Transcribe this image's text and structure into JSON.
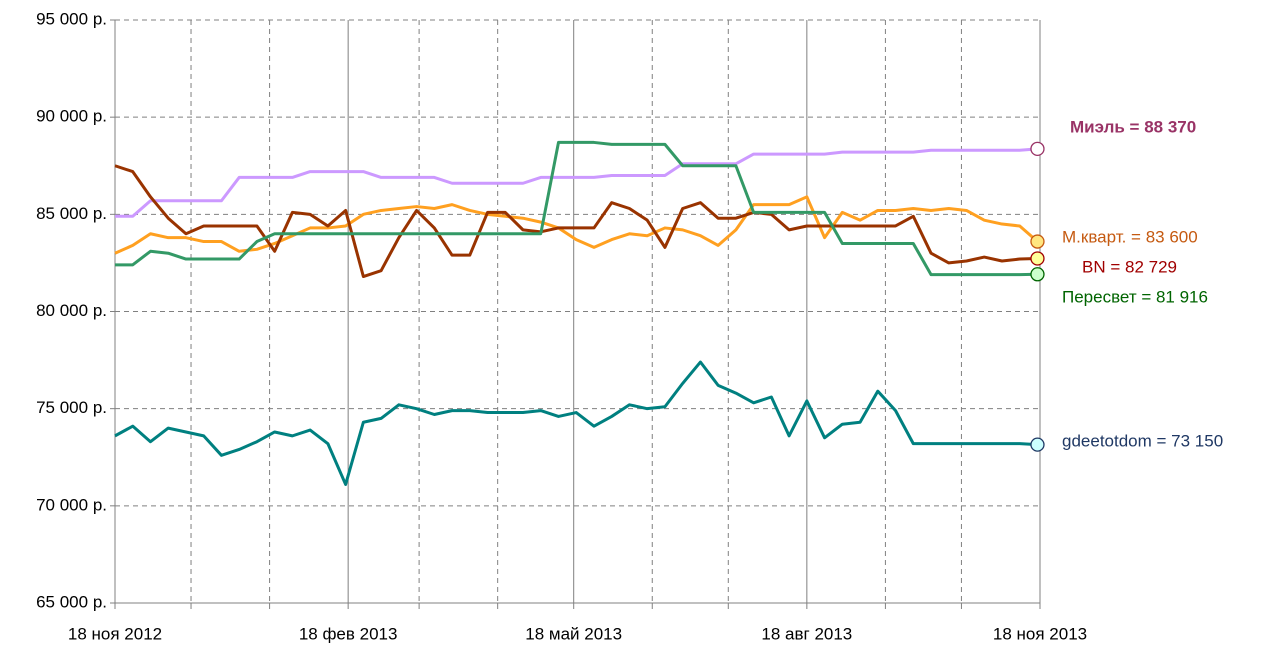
{
  "chart_data": {
    "type": "line",
    "x": [
      "2012-11-18",
      "2012-11-25",
      "2012-12-02",
      "2012-12-09",
      "2012-12-16",
      "2012-12-23",
      "2012-12-30",
      "2013-01-06",
      "2013-01-13",
      "2013-01-20",
      "2013-01-27",
      "2013-02-03",
      "2013-02-10",
      "2013-02-17",
      "2013-02-24",
      "2013-03-03",
      "2013-03-10",
      "2013-03-17",
      "2013-03-24",
      "2013-03-31",
      "2013-04-07",
      "2013-04-14",
      "2013-04-21",
      "2013-04-28",
      "2013-05-05",
      "2013-05-12",
      "2013-05-19",
      "2013-05-26",
      "2013-06-02",
      "2013-06-09",
      "2013-06-16",
      "2013-06-23",
      "2013-06-30",
      "2013-07-07",
      "2013-07-14",
      "2013-07-21",
      "2013-07-28",
      "2013-08-04",
      "2013-08-11",
      "2013-08-18",
      "2013-08-25",
      "2013-09-01",
      "2013-09-08",
      "2013-09-15",
      "2013-09-22",
      "2013-09-29",
      "2013-10-06",
      "2013-10-13",
      "2013-10-20",
      "2013-10-27",
      "2013-11-03",
      "2013-11-10",
      "2013-11-17"
    ],
    "xlim": [
      "2012-11-18",
      "2013-11-18"
    ],
    "xticks": [
      {
        "value": "2012-11-18",
        "label": "18 ноя 2012"
      },
      {
        "value": "2013-02-18",
        "label": "18 фев 2013"
      },
      {
        "value": "2013-05-18",
        "label": "18 май 2013"
      },
      {
        "value": "2013-08-18",
        "label": "18 авг 2013"
      },
      {
        "value": "2013-11-18",
        "label": "18 ноя 2013"
      }
    ],
    "xminor": [
      "2012-12-18",
      "2013-01-18",
      "2013-03-18",
      "2013-04-18",
      "2013-06-18",
      "2013-07-18",
      "2013-09-18",
      "2013-10-18"
    ],
    "ylim": [
      65000,
      95000
    ],
    "yticks": [
      {
        "value": 65000,
        "label": "65 000 р."
      },
      {
        "value": 70000,
        "label": "70 000 р."
      },
      {
        "value": 75000,
        "label": "75 000 р."
      },
      {
        "value": 80000,
        "label": "80 000 р."
      },
      {
        "value": 85000,
        "label": "85 000 р."
      },
      {
        "value": 90000,
        "label": "90 000 р."
      },
      {
        "value": 95000,
        "label": "95 000 р."
      }
    ],
    "grid": true,
    "series": [
      {
        "name": "Миэль = 88 370",
        "color": "#cc99ff",
        "label_color": "#993366",
        "marker_fill": "#ffffff",
        "bold": true,
        "values": [
          84900,
          84900,
          85700,
          85700,
          85700,
          85700,
          85700,
          86900,
          86900,
          86900,
          86900,
          87200,
          87200,
          87200,
          87200,
          86900,
          86900,
          86900,
          86900,
          86600,
          86600,
          86600,
          86600,
          86600,
          86900,
          86900,
          86900,
          86900,
          87000,
          87000,
          87000,
          87000,
          87600,
          87600,
          87600,
          87600,
          88100,
          88100,
          88100,
          88100,
          88100,
          88200,
          88200,
          88200,
          88200,
          88200,
          88300,
          88300,
          88300,
          88300,
          88300,
          88300,
          88370
        ]
      },
      {
        "name": "М.кварт. = 83 600",
        "color": "#ffa020",
        "label_color": "#c55a11",
        "marker_fill": "#ffe680",
        "bold": false,
        "values": [
          83000,
          83400,
          84000,
          83800,
          83800,
          83600,
          83600,
          83100,
          83200,
          83500,
          83900,
          84300,
          84300,
          84400,
          85000,
          85200,
          85300,
          85400,
          85300,
          85500,
          85200,
          85000,
          84900,
          84800,
          84600,
          84300,
          83700,
          83300,
          83700,
          84000,
          83900,
          84300,
          84200,
          83900,
          83400,
          84200,
          85500,
          85500,
          85500,
          85900,
          83800,
          85100,
          84700,
          85200,
          85200,
          85300,
          85200,
          85300,
          85200,
          84700,
          84500,
          84400,
          83600
        ]
      },
      {
        "name": "BN = 82 729",
        "color": "#993300",
        "label_color": "#a00000",
        "marker_fill": "#ffff99",
        "bold": false,
        "values": [
          87500,
          87200,
          85900,
          84800,
          84000,
          84400,
          84400,
          84400,
          84400,
          83100,
          85100,
          85000,
          84400,
          85200,
          81800,
          82100,
          83800,
          85200,
          84300,
          82900,
          82900,
          85100,
          85100,
          84200,
          84100,
          84300,
          84300,
          84300,
          85600,
          85300,
          84700,
          83300,
          85300,
          85600,
          84800,
          84800,
          85100,
          85000,
          84200,
          84400,
          84400,
          84400,
          84400,
          84400,
          84400,
          84900,
          83000,
          82500,
          82600,
          82800,
          82600,
          82700,
          82729
        ]
      },
      {
        "name": "Пересвет = 81 916",
        "color": "#339966",
        "label_color": "#006400",
        "marker_fill": "#ccffcc",
        "bold": false,
        "values": [
          82400,
          82400,
          83100,
          83000,
          82700,
          82700,
          82700,
          82700,
          83600,
          84000,
          84000,
          84000,
          84000,
          84000,
          84000,
          84000,
          84000,
          84000,
          84000,
          84000,
          84000,
          84000,
          84000,
          84000,
          84000,
          88700,
          88700,
          88700,
          88600,
          88600,
          88600,
          88600,
          87500,
          87500,
          87500,
          87500,
          85100,
          85100,
          85100,
          85100,
          85100,
          83500,
          83500,
          83500,
          83500,
          83500,
          81900,
          81900,
          81900,
          81900,
          81900,
          81900,
          81916
        ]
      },
      {
        "name": "gdeetotdom = 73 150",
        "color": "#008080",
        "label_color": "#1f3864",
        "marker_fill": "#ccffff",
        "bold": false,
        "values": [
          73600,
          74100,
          73300,
          74000,
          73800,
          73600,
          72600,
          72900,
          73300,
          73800,
          73600,
          73900,
          73200,
          71100,
          74300,
          74500,
          75200,
          75000,
          74700,
          74900,
          74900,
          74800,
          74800,
          74800,
          74900,
          74600,
          74800,
          74100,
          74600,
          75200,
          75000,
          75100,
          76300,
          77400,
          76200,
          75800,
          75300,
          75600,
          73600,
          75400,
          73500,
          74200,
          74300,
          75900,
          74900,
          73200,
          73200,
          73200,
          73200,
          73200,
          73200,
          73200,
          73150
        ]
      }
    ]
  }
}
